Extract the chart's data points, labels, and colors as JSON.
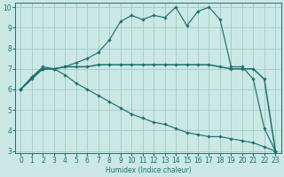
{
  "xlabel": "Humidex (Indice chaleur)",
  "background_color": "#cce8e4",
  "grid_color": "#99cccc",
  "line_color": "#1a7070",
  "x_values": [
    0,
    1,
    2,
    3,
    4,
    5,
    6,
    7,
    8,
    9,
    10,
    11,
    12,
    13,
    14,
    15,
    16,
    17,
    18,
    19,
    20,
    21,
    22,
    23
  ],
  "y_max": [
    6.0,
    6.6,
    7.1,
    7.0,
    7.1,
    7.3,
    7.5,
    7.8,
    8.4,
    9.3,
    9.6,
    9.4,
    9.6,
    9.5,
    10.0,
    9.1,
    9.8,
    10.0,
    9.4,
    7.1,
    7.1,
    6.5,
    4.1,
    3.0
  ],
  "y_mean": [
    6.0,
    6.6,
    7.0,
    7.0,
    7.1,
    7.1,
    7.1,
    7.2,
    7.2,
    7.2,
    7.2,
    7.2,
    7.2,
    7.2,
    7.2,
    7.2,
    7.2,
    7.2,
    7.1,
    7.0,
    7.0,
    7.0,
    6.5,
    3.0
  ],
  "y_min": [
    6.0,
    6.5,
    7.0,
    7.0,
    6.7,
    6.3,
    6.0,
    5.7,
    5.4,
    5.1,
    4.8,
    4.6,
    4.4,
    4.3,
    4.1,
    3.9,
    3.8,
    3.7,
    3.7,
    3.6,
    3.5,
    3.4,
    3.2,
    3.0
  ],
  "ylim_min": 3,
  "ylim_max": 10,
  "yticks": [
    3,
    4,
    5,
    6,
    7,
    8,
    9,
    10
  ],
  "xticks": [
    0,
    1,
    2,
    3,
    4,
    5,
    6,
    7,
    8,
    9,
    10,
    11,
    12,
    13,
    14,
    15,
    16,
    17,
    18,
    19,
    20,
    21,
    22,
    23
  ]
}
